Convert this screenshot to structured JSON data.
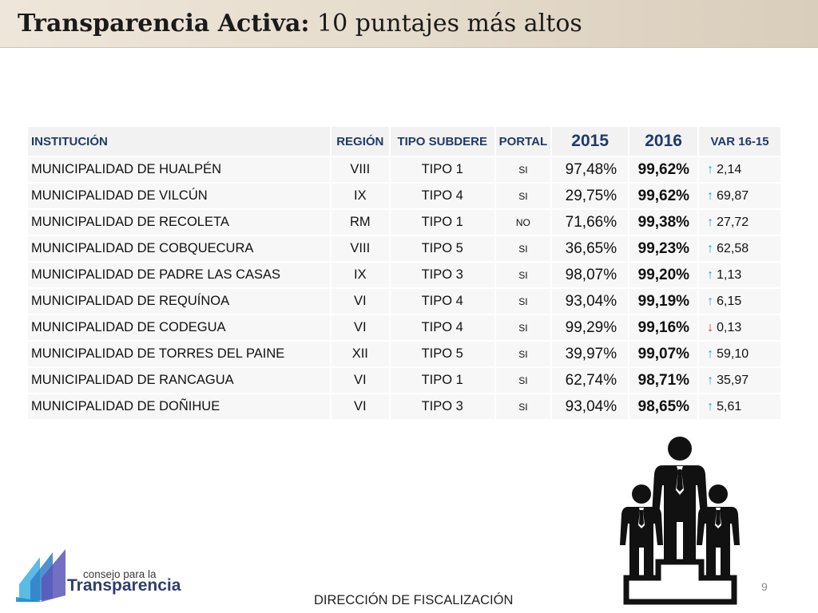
{
  "slide": {
    "title_bold": "Transparencia Activa:",
    "title_rest": " 10 puntajes más altos",
    "page_number": "9",
    "footer": "DIRECCIÓN DE FISCALIZACIÓN"
  },
  "table": {
    "headers": {
      "institucion": "INSTITUCIÓN",
      "region": "REGIÓN",
      "tipo": "TIPO SUBDERE",
      "portal": "PORTAL",
      "y2015": "2015",
      "y2016": "2016",
      "var": "VAR 16-15"
    },
    "rows": [
      {
        "institucion": "MUNICIPALIDAD DE HUALPÉN",
        "region": "VIII",
        "tipo": "TIPO 1",
        "portal": "SI",
        "y2015": "97,48%",
        "y2016": "99,62%",
        "var": "2,14",
        "dir": "up"
      },
      {
        "institucion": "MUNICIPALIDAD DE VILCÚN",
        "region": "IX",
        "tipo": "TIPO 4",
        "portal": "SI",
        "y2015": "29,75%",
        "y2016": "99,62%",
        "var": "69,87",
        "dir": "up"
      },
      {
        "institucion": "MUNICIPALIDAD DE RECOLETA",
        "region": "RM",
        "tipo": "TIPO 1",
        "portal": "NO",
        "y2015": "71,66%",
        "y2016": "99,38%",
        "var": "27,72",
        "dir": "up"
      },
      {
        "institucion": "MUNICIPALIDAD DE COBQUECURA",
        "region": "VIII",
        "tipo": "TIPO 5",
        "portal": "SI",
        "y2015": "36,65%",
        "y2016": "99,23%",
        "var": "62,58",
        "dir": "up"
      },
      {
        "institucion": "MUNICIPALIDAD DE PADRE LAS CASAS",
        "region": "IX",
        "tipo": "TIPO 3",
        "portal": "SI",
        "y2015": "98,07%",
        "y2016": "99,20%",
        "var": "1,13",
        "dir": "up"
      },
      {
        "institucion": "MUNICIPALIDAD DE REQUÍNOA",
        "region": "VI",
        "tipo": "TIPO 4",
        "portal": "SI",
        "y2015": "93,04%",
        "y2016": "99,19%",
        "var": "6,15",
        "dir": "up"
      },
      {
        "institucion": "MUNICIPALIDAD DE CODEGUA",
        "region": "VI",
        "tipo": "TIPO 4",
        "portal": "SI",
        "y2015": "99,29%",
        "y2016": "99,16%",
        "var": "0,13",
        "dir": "down"
      },
      {
        "institucion": "MUNICIPALIDAD DE TORRES DEL PAINE",
        "region": "XII",
        "tipo": "TIPO 5",
        "portal": "SI",
        "y2015": "39,97%",
        "y2016": "99,07%",
        "var": "59,10",
        "dir": "up"
      },
      {
        "institucion": "MUNICIPALIDAD DE RANCAGUA",
        "region": "VI",
        "tipo": "TIPO 1",
        "portal": "SI",
        "y2015": "62,74%",
        "y2016": "98,71%",
        "var": "35,97",
        "dir": "up"
      },
      {
        "institucion": "MUNICIPALIDAD DE DOÑIHUE",
        "region": "VI",
        "tipo": "TIPO 3",
        "portal": "SI",
        "y2015": "93,04%",
        "y2016": "98,65%",
        "var": "5,61",
        "dir": "up"
      }
    ]
  },
  "logo": {
    "small": "consejo para la",
    "big": "Transparencia"
  },
  "icons": {
    "up": "arrow-up-icon",
    "down": "arrow-down-icon",
    "podium": "podium-icon"
  },
  "colors": {
    "header_text": "#1f3a68",
    "arrow_up": "#2aa6c8",
    "arrow_down": "#e03030"
  }
}
